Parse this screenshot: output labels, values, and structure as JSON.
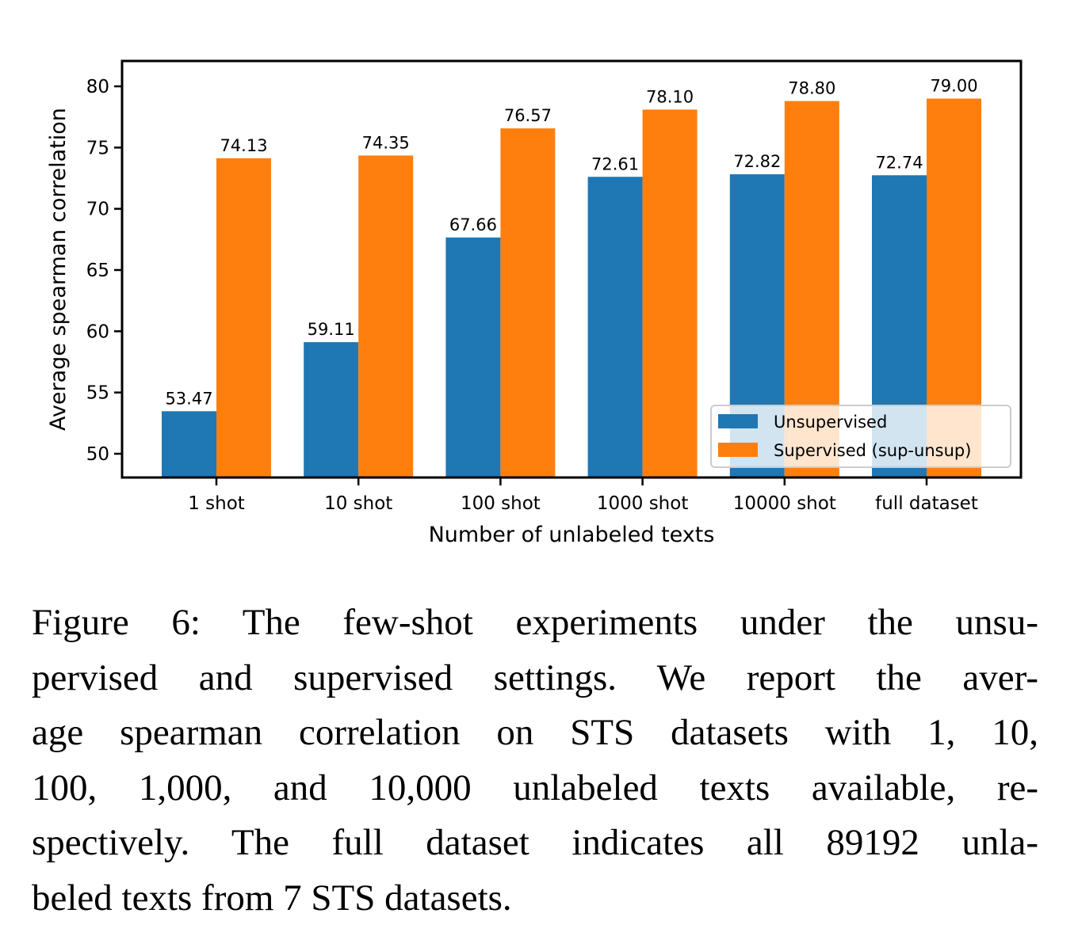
{
  "chart_data": {
    "type": "bar",
    "title": "",
    "xlabel": "Number of unlabeled texts",
    "ylabel": "Average spearman correlation",
    "categories": [
      "1 shot",
      "10 shot",
      "100 shot",
      "1000 shot",
      "10000 shot",
      "full dataset"
    ],
    "series": [
      {
        "name": "Unsupervised",
        "color": "#1f77b4",
        "values": [
          53.47,
          59.11,
          67.66,
          72.61,
          72.82,
          72.74
        ],
        "labels": [
          "53.47",
          "59.11",
          "67.66",
          "72.61",
          "72.82",
          "72.74"
        ]
      },
      {
        "name": "Supervised (sup-unsup)",
        "color": "#ff7f0e",
        "values": [
          74.13,
          74.35,
          76.57,
          78.1,
          78.8,
          79.0
        ],
        "labels": [
          "74.13",
          "74.35",
          "76.57",
          "78.10",
          "78.80",
          "79.00"
        ]
      }
    ],
    "ylim": [
      48.06,
      82.07
    ],
    "yticks": [
      50,
      55,
      60,
      65,
      70,
      75,
      80
    ],
    "ytick_labels": [
      "50",
      "55",
      "60",
      "65",
      "70",
      "75",
      "80"
    ],
    "grid": false,
    "legend_position": "lower-right"
  },
  "caption": {
    "lines": [
      "Figure 6:  The few-shot experiments under the unsu-",
      "pervised and supervised settings.  We report the aver-",
      "age spearman correlation on STS datasets with 1, 10,",
      "100, 1,000, and 10,000 unlabeled texts available, re-",
      "spectively.  The full dataset indicates all 89192 unla-",
      "beled texts from 7 STS datasets."
    ]
  }
}
